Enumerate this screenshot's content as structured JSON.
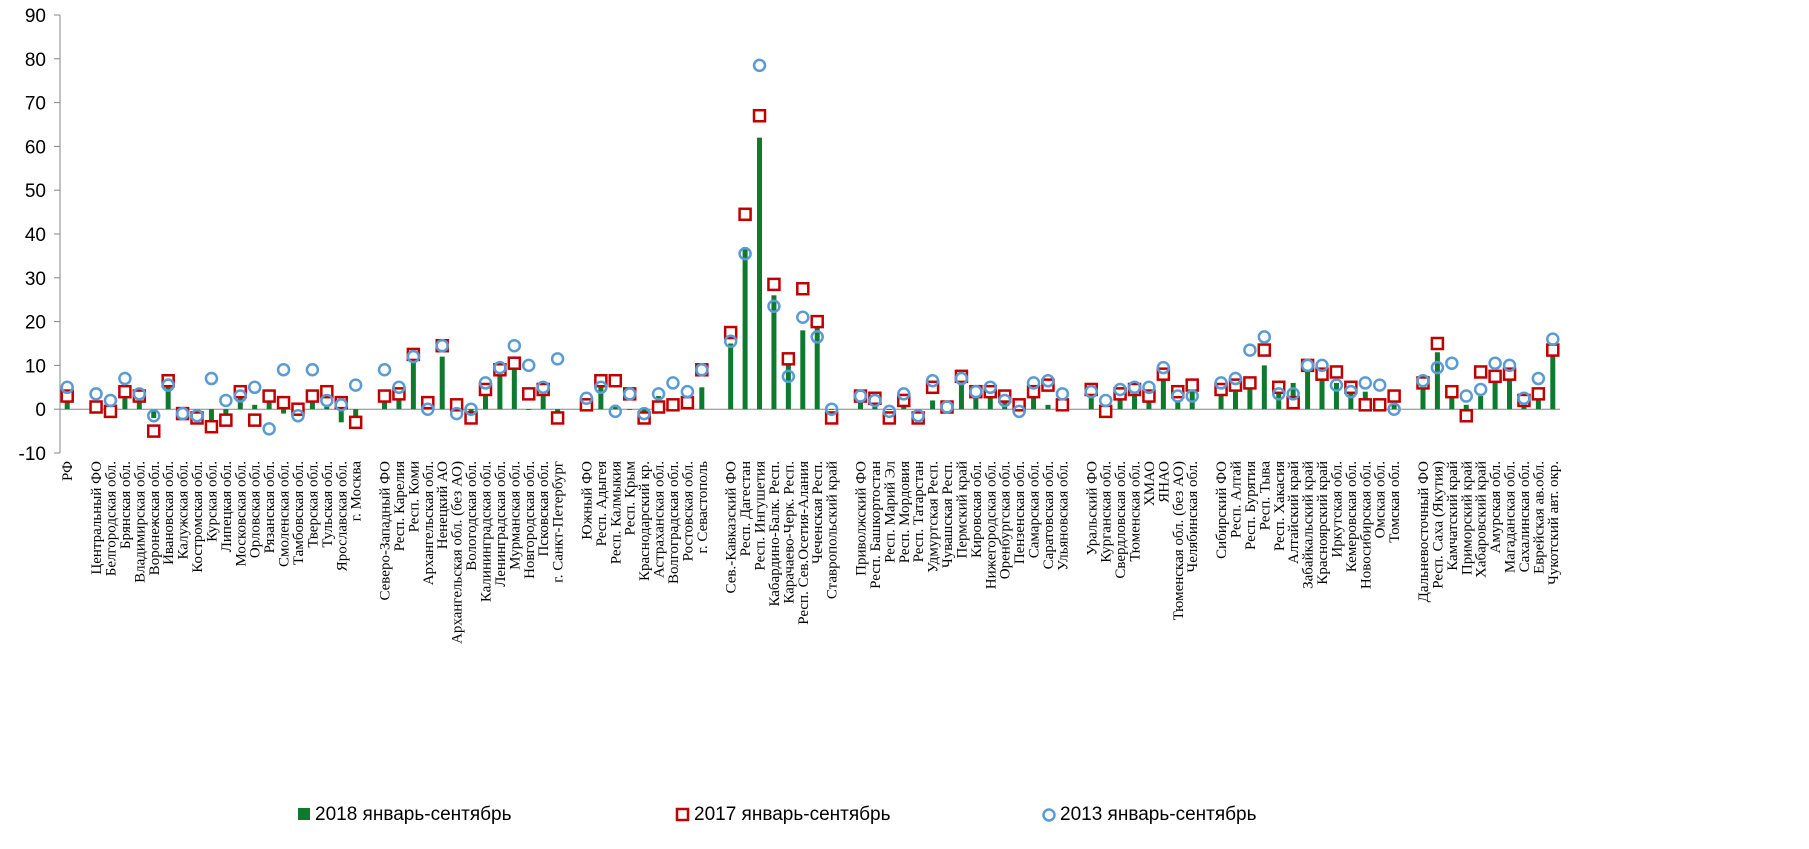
{
  "chart_data": {
    "type": "bar",
    "ylim": [
      -10,
      90
    ],
    "yticks": [
      -10,
      0,
      10,
      20,
      30,
      40,
      50,
      60,
      70,
      80,
      90
    ],
    "grid": false,
    "legend_position": "bottom",
    "categories": [
      "РФ",
      "",
      "Центральный ФО",
      "Белгородская обл.",
      "Брянская обл.",
      "Владимирская обл.",
      "Воронежская обл.",
      "Ивановская обл.",
      "Калужская обл.",
      "Костромская обл.",
      "Курская обл.",
      "Липецкая обл.",
      "Московская обл.",
      "Орловская обл.",
      "Рязанская обл.",
      "Смоленская обл.",
      "Тамбовская обл.",
      "Тверская обл.",
      "Тульская обл.",
      "Ярославская обл.",
      "г. Москва",
      "",
      "Северо-Западный ФО",
      "Респ. Карелия",
      "Респ. Коми",
      "Архангельская обл.",
      "Ненецкий АО",
      "Архангельская обл. (без АО)",
      "Вологодская обл.",
      "Калининградская обл.",
      "Ленинградская обл.",
      "Мурманская обл.",
      "Новгородская обл.",
      "Псковская обл.",
      "г. Санкт-Петербург",
      "",
      "Южный ФО",
      "Респ. Адыгея",
      "Респ. Калмыкия",
      "Респ. Крым",
      "Краснодарский кр.",
      "Астраханская обл.",
      "Волгоградская обл.",
      "Ростовская обл.",
      "г. Севастополь",
      "",
      "Сев.-Кавказский ФО",
      "Респ. Дагестан",
      "Респ. Ингушетия",
      "Кабардино-Балк. Респ.",
      "Карачаево-Черк. Респ.",
      "Респ. Сев.Осетия-Алания",
      "Чеченская Респ.",
      "Ставропольский край",
      "",
      "Приволжский ФО",
      "Респ. Башкортостан",
      "Респ. Марий Эл",
      "Респ. Мордовия",
      "Респ. Татарстан",
      "Удмуртская Респ.",
      "Чувашская Респ.",
      "Пермский край",
      "Кировская обл.",
      "Нижегородская обл.",
      "Оренбургская обл.",
      "Пензенская обл.",
      "Самарская обл.",
      "Саратовская обл.",
      "Ульяновская обл.",
      "",
      "Уральский ФО",
      "Курганская обл.",
      "Свердловская обл.",
      "Тюменская обл.",
      "ХМАО",
      "ЯНАО",
      "Тюменская обл. (без АО)",
      "Челябинская обл.",
      "",
      "Сибирский ФО",
      "Респ. Алтай",
      "Респ. Бурятия",
      "Респ. Тыва",
      "Респ. Хакасия",
      "Алтайский край",
      "Забайкальский край",
      "Красноярский край",
      "Иркутская обл.",
      "Кемеровская обл.",
      "Новосибирская обл.",
      "Омская обл.",
      "Томская обл.",
      "",
      "Дальневосточный ФО",
      "Респ. Саха (Якутия)",
      "Камчатский край",
      "Приморский край",
      "Хабаровский край",
      "Амурская обл.",
      "Магаданская обл.",
      "Сахалинская обл.",
      "Еврейская ав.обл.",
      "Чукотский авт. окр."
    ],
    "series": [
      {
        "name": "2018 январь-сентябрь",
        "marker": "bar",
        "color": "#0e7a2e",
        "values": [
          2,
          null,
          1,
          1,
          4,
          3,
          -2,
          6,
          -2,
          -3,
          -3,
          -2,
          3,
          1,
          2,
          -1,
          0,
          2,
          1,
          -3,
          -2,
          null,
          2,
          3,
          12,
          2,
          12,
          1,
          -1,
          3,
          8,
          9,
          0,
          3,
          -3,
          null,
          1,
          5,
          1,
          0,
          -1,
          3,
          1,
          2,
          5,
          null,
          15,
          37,
          62,
          26,
          11,
          18,
          19,
          0,
          null,
          2,
          3,
          0,
          2,
          -2,
          2,
          1,
          7,
          3,
          3,
          2,
          0,
          4,
          1,
          0,
          null,
          4,
          1,
          3,
          4,
          3,
          8,
          2,
          6,
          null,
          4,
          4,
          5,
          10,
          4,
          6,
          10,
          8,
          6,
          4,
          4,
          1,
          2,
          null,
          5,
          13,
          3,
          1,
          3,
          6,
          9,
          2,
          3,
          14
        ]
      },
      {
        "name": "2017 январь-сентябрь",
        "marker": "square",
        "color": "#c00000",
        "values": [
          3,
          null,
          0.5,
          -0.5,
          4,
          3,
          -5,
          6.5,
          -1,
          -2,
          -4,
          -2.5,
          4,
          -2.5,
          3,
          1.5,
          0,
          3,
          4,
          1.5,
          -3,
          null,
          3,
          3.5,
          12.5,
          1.5,
          14.5,
          1,
          -2,
          4.5,
          9,
          10.5,
          3.5,
          4.5,
          -2,
          null,
          1,
          6.5,
          6.5,
          3.5,
          -2,
          0.5,
          1,
          1.5,
          9,
          null,
          17.5,
          44.5,
          67,
          28.5,
          11.5,
          27.5,
          20,
          -2,
          null,
          3,
          2.5,
          -2,
          2,
          -2,
          5,
          0.5,
          7.5,
          4,
          4,
          3,
          1,
          4,
          5.5,
          1,
          null,
          4.5,
          -0.5,
          3.5,
          4.5,
          3,
          8,
          4,
          5.5,
          null,
          4.5,
          5.5,
          6,
          13.5,
          5,
          1.5,
          10,
          8,
          8.5,
          5,
          1,
          1,
          3,
          null,
          6,
          15,
          4,
          -1.5,
          8.5,
          7.5,
          8,
          2,
          3.5,
          13.5
        ]
      },
      {
        "name": "2013 январь-сентябрь",
        "marker": "circle",
        "color": "#5b9bd5",
        "values": [
          5,
          null,
          3.5,
          2,
          7,
          3.5,
          -1.5,
          5.5,
          -1,
          -1.5,
          7,
          2,
          3,
          5,
          -4.5,
          9,
          -1.5,
          9,
          2,
          1,
          5.5,
          null,
          9,
          5,
          12,
          0,
          14.5,
          -1,
          0,
          6,
          9.5,
          14.5,
          10,
          5,
          11.5,
          null,
          2.5,
          5,
          -0.5,
          3.5,
          -1,
          3.5,
          6,
          4,
          9,
          null,
          15.5,
          35.5,
          78.5,
          23.5,
          7.5,
          21,
          16.5,
          0,
          null,
          3,
          2,
          -0.5,
          3.5,
          -1.5,
          6.5,
          0.5,
          7,
          4,
          5,
          2,
          -0.5,
          6,
          6.5,
          3.5,
          null,
          4,
          2,
          4.5,
          5,
          5,
          9.5,
          3,
          3,
          null,
          6,
          7,
          13.5,
          16.5,
          3.5,
          3.5,
          10,
          10,
          5.5,
          4,
          6,
          5.5,
          0,
          null,
          6.5,
          9.5,
          10.5,
          3,
          4.5,
          10.5,
          10,
          2.5,
          7,
          16
        ]
      }
    ]
  }
}
